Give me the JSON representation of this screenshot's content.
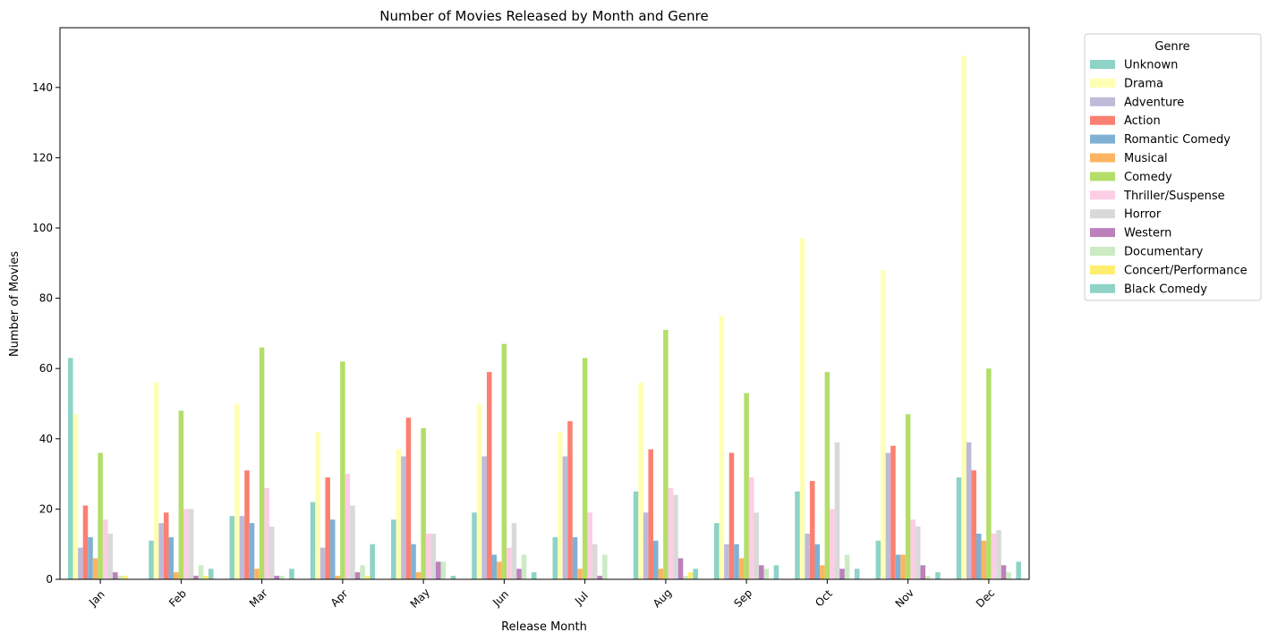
{
  "chart_data": {
    "type": "bar",
    "title": "Number of Movies Released by Month and Genre",
    "xlabel": "Release Month",
    "ylabel": "Number of Movies",
    "ylim": [
      0,
      157
    ],
    "yticks": [
      0,
      20,
      40,
      60,
      80,
      100,
      120,
      140
    ],
    "grid": false,
    "legend_title": "Genre",
    "legend_position": "outside-top-right",
    "categories": [
      "Jan",
      "Feb",
      "Mar",
      "Apr",
      "May",
      "Jun",
      "Jul",
      "Aug",
      "Sep",
      "Oct",
      "Nov",
      "Dec"
    ],
    "series": [
      {
        "name": "Unknown",
        "color": "#8dd3c7",
        "values": [
          63,
          11,
          18,
          22,
          17,
          19,
          12,
          25,
          16,
          25,
          11,
          29
        ]
      },
      {
        "name": "Drama",
        "color": "#ffffb3",
        "values": [
          47,
          56,
          50,
          42,
          37,
          50,
          42,
          56,
          75,
          97,
          88,
          149
        ]
      },
      {
        "name": "Adventure",
        "color": "#bebada",
        "values": [
          9,
          16,
          18,
          9,
          35,
          35,
          35,
          19,
          10,
          13,
          36,
          39
        ]
      },
      {
        "name": "Action",
        "color": "#fb8072",
        "values": [
          21,
          19,
          31,
          29,
          46,
          59,
          45,
          37,
          36,
          28,
          38,
          31
        ]
      },
      {
        "name": "Romantic Comedy",
        "color": "#80b1d3",
        "values": [
          12,
          12,
          16,
          17,
          10,
          7,
          12,
          11,
          10,
          10,
          7,
          13
        ]
      },
      {
        "name": "Musical",
        "color": "#fdb462",
        "values": [
          6,
          2,
          3,
          1,
          2,
          5,
          3,
          3,
          6,
          4,
          7,
          11
        ]
      },
      {
        "name": "Comedy",
        "color": "#b3de69",
        "values": [
          36,
          48,
          66,
          62,
          43,
          67,
          63,
          71,
          53,
          59,
          47,
          60
        ]
      },
      {
        "name": "Thriller/Suspense",
        "color": "#fccde5",
        "values": [
          17,
          20,
          26,
          30,
          13,
          9,
          19,
          26,
          29,
          20,
          17,
          13
        ]
      },
      {
        "name": "Horror",
        "color": "#d9d9d9",
        "values": [
          13,
          20,
          15,
          21,
          13,
          16,
          10,
          24,
          19,
          39,
          15,
          14
        ]
      },
      {
        "name": "Western",
        "color": "#bc80bd",
        "values": [
          2,
          1,
          1,
          2,
          5,
          3,
          1,
          6,
          4,
          3,
          4,
          4
        ]
      },
      {
        "name": "Documentary",
        "color": "#ccebc5",
        "values": [
          1,
          4,
          1,
          4,
          5,
          7,
          7,
          1,
          3,
          7,
          1,
          2
        ]
      },
      {
        "name": "Concert/Performance",
        "color": "#ffed6f",
        "values": [
          1,
          1,
          0,
          1,
          0,
          0,
          0,
          2,
          0,
          0,
          0,
          0
        ]
      },
      {
        "name": "Black Comedy",
        "color": "#8dd3c7",
        "values": [
          0,
          3,
          3,
          10,
          1,
          2,
          0,
          3,
          4,
          3,
          2,
          5
        ]
      }
    ]
  }
}
